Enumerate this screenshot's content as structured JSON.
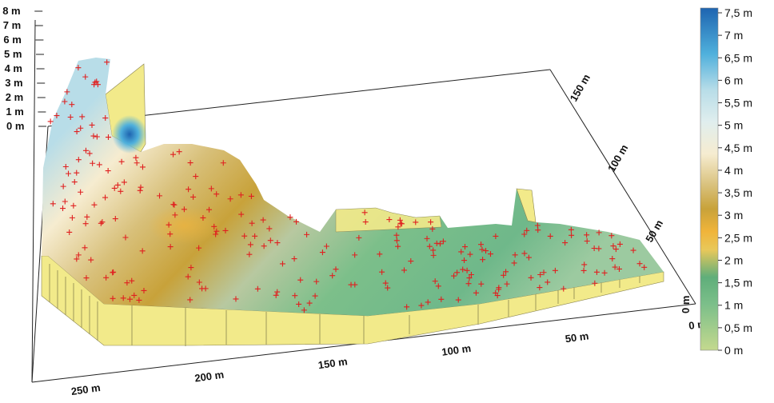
{
  "chart_data": {
    "type": "surface3d",
    "title": "",
    "x_axis": {
      "ticks": [
        "0 m",
        "50 m",
        "100 m",
        "150 m",
        "200 m",
        "250 m"
      ],
      "values": [
        0,
        50,
        100,
        150,
        200,
        250
      ]
    },
    "y_axis": {
      "ticks": [
        "0 m",
        "50 m",
        "100 m",
        "150 m"
      ],
      "values": [
        0,
        50,
        100,
        150
      ]
    },
    "z_axis": {
      "ticks": [
        "0 m",
        "1 m",
        "2 m",
        "3 m",
        "4 m",
        "5 m",
        "6 m",
        "7 m",
        "8 m"
      ],
      "values": [
        0,
        1,
        2,
        3,
        4,
        5,
        6,
        7,
        8
      ]
    },
    "colorbar": {
      "ticks": [
        "0 m",
        "0,5 m",
        "1 m",
        "1,5 m",
        "2 m",
        "2,5 m",
        "3 m",
        "3,5 m",
        "4 m",
        "4,5 m",
        "5 m",
        "5,5 m",
        "6 m",
        "6,5 m",
        "7 m",
        "7,5 m"
      ],
      "values": [
        0,
        0.5,
        1,
        1.5,
        2,
        2.5,
        3,
        3.5,
        4,
        4.5,
        5,
        5.5,
        6,
        6.5,
        7,
        7.5
      ],
      "range": [
        0,
        7.5
      ],
      "colors": [
        {
          "v": 0.0,
          "c": "#c4d98e"
        },
        {
          "v": 1.0,
          "c": "#7cbf8a"
        },
        {
          "v": 1.6,
          "c": "#5fae7a"
        },
        {
          "v": 2.2,
          "c": "#e8c85a"
        },
        {
          "v": 2.6,
          "c": "#f0b43a"
        },
        {
          "v": 3.1,
          "c": "#c8a23a"
        },
        {
          "v": 3.6,
          "c": "#d8c07a"
        },
        {
          "v": 4.3,
          "c": "#f6ecd0"
        },
        {
          "v": 5.0,
          "c": "#e0eeee"
        },
        {
          "v": 5.7,
          "c": "#b8dde8"
        },
        {
          "v": 6.5,
          "c": "#4fb0dc"
        },
        {
          "v": 7.5,
          "c": "#1e64b0"
        }
      ]
    },
    "marker_color": "#e02020",
    "wall_color": "#f2ea8a",
    "grid": false
  }
}
